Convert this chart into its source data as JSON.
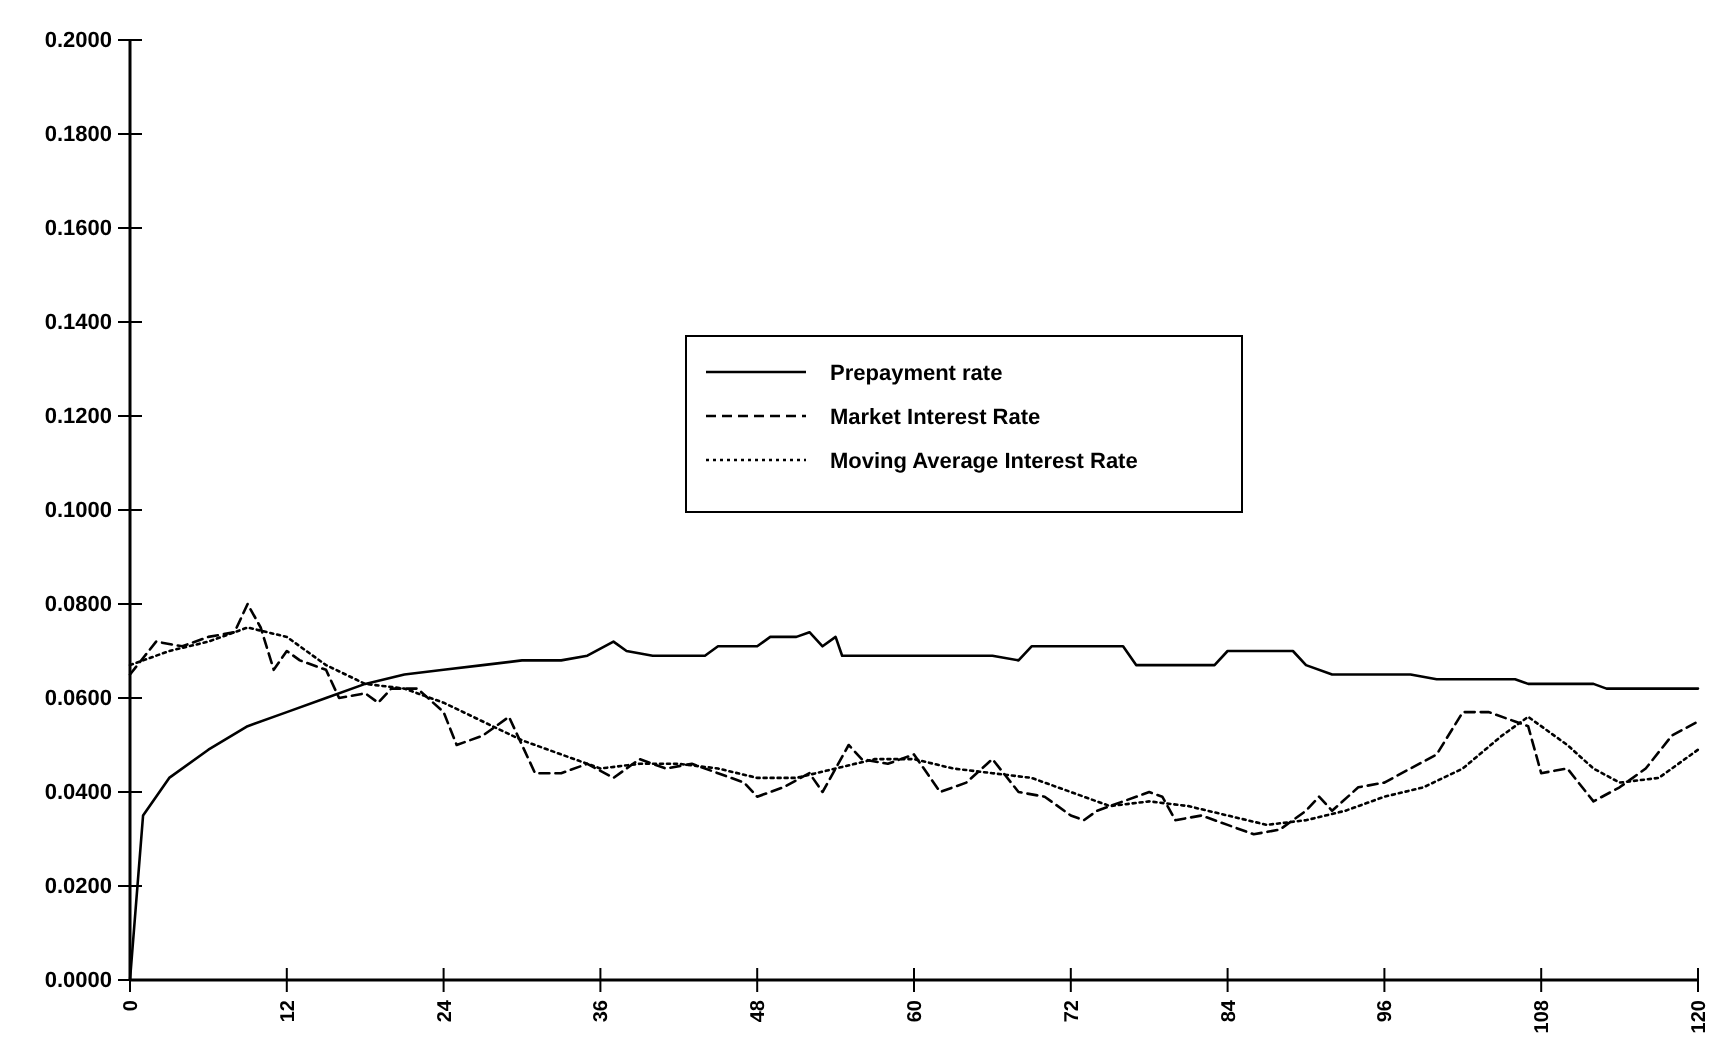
{
  "chart_data": {
    "type": "line",
    "xlim": [
      0,
      120
    ],
    "xticks": [
      0,
      12,
      24,
      36,
      48,
      60,
      72,
      84,
      96,
      108,
      120
    ],
    "ylim": [
      0,
      0.2
    ],
    "yticks": [
      {
        "value": 0,
        "label": "0.0000"
      },
      {
        "value": 0.02,
        "label": "0.0200"
      },
      {
        "value": 0.04,
        "label": "0.0400"
      },
      {
        "value": 0.06,
        "label": "0.0600"
      },
      {
        "value": 0.08,
        "label": "0.0800"
      },
      {
        "value": 0.1,
        "label": "0.1000"
      },
      {
        "value": 0.12,
        "label": "0.1200"
      },
      {
        "value": 0.14,
        "label": "0.1400"
      },
      {
        "value": 0.16,
        "label": "0.1600"
      },
      {
        "value": 0.18,
        "label": "0.1800"
      },
      {
        "value": 0.2,
        "label": "0.2000"
      }
    ],
    "grid": false,
    "legend": "top right",
    "marker": "none",
    "series": [
      {
        "name": "Prepayment rate",
        "color": "#000000",
        "line_style": "solid",
        "x": [
          0,
          1,
          3,
          6,
          9,
          12,
          15,
          18,
          21,
          24,
          27,
          30,
          33,
          35,
          37,
          38,
          40,
          44,
          45,
          48,
          49,
          51,
          52,
          53,
          54,
          54.5,
          66,
          68,
          69,
          76,
          77,
          83,
          84,
          89,
          90,
          92,
          98,
          100,
          106,
          107,
          112,
          113,
          120
        ],
        "values": [
          0,
          0.035,
          0.043,
          0.049,
          0.054,
          0.057,
          0.06,
          0.063,
          0.065,
          0.066,
          0.067,
          0.068,
          0.068,
          0.069,
          0.072,
          0.07,
          0.069,
          0.069,
          0.071,
          0.071,
          0.073,
          0.073,
          0.074,
          0.071,
          0.073,
          0.069,
          0.069,
          0.068,
          0.071,
          0.071,
          0.067,
          0.067,
          0.07,
          0.07,
          0.067,
          0.065,
          0.065,
          0.064,
          0.064,
          0.063,
          0.063,
          0.062,
          0.062
        ]
      },
      {
        "name": "Market Interest Rate",
        "color": "#000000",
        "line_style": "dashed",
        "x": [
          0,
          2,
          4,
          6,
          8,
          9,
          10,
          11,
          12,
          13,
          15,
          16,
          18,
          19,
          20,
          22,
          24,
          25,
          27,
          29,
          31,
          33,
          35,
          37,
          39,
          41,
          43,
          45,
          47,
          48,
          50,
          52,
          53,
          55,
          56,
          58,
          60,
          62,
          64,
          66,
          68,
          70,
          72,
          73,
          74,
          76,
          78,
          79,
          80,
          82,
          84,
          86,
          88,
          90,
          91,
          92,
          94,
          96,
          98,
          100,
          102,
          104,
          106,
          107,
          108,
          110,
          112,
          114,
          116,
          118,
          120
        ],
        "values": [
          0.065,
          0.072,
          0.071,
          0.073,
          0.074,
          0.08,
          0.075,
          0.066,
          0.07,
          0.068,
          0.066,
          0.06,
          0.061,
          0.059,
          0.062,
          0.062,
          0.057,
          0.05,
          0.052,
          0.056,
          0.044,
          0.044,
          0.046,
          0.043,
          0.047,
          0.045,
          0.046,
          0.044,
          0.042,
          0.039,
          0.041,
          0.044,
          0.04,
          0.05,
          0.047,
          0.046,
          0.048,
          0.04,
          0.042,
          0.047,
          0.04,
          0.039,
          0.035,
          0.034,
          0.036,
          0.038,
          0.04,
          0.039,
          0.034,
          0.035,
          0.033,
          0.031,
          0.032,
          0.036,
          0.039,
          0.036,
          0.041,
          0.042,
          0.045,
          0.048,
          0.057,
          0.057,
          0.055,
          0.054,
          0.044,
          0.045,
          0.038,
          0.041,
          0.045,
          0.052,
          0.055
        ]
      },
      {
        "name": "Moving Average Interest Rate",
        "color": "#000000",
        "line_style": "dotted",
        "x": [
          0,
          3,
          6,
          9,
          12,
          15,
          18,
          21,
          24,
          27,
          30,
          33,
          36,
          39,
          42,
          45,
          48,
          51,
          54,
          57,
          60,
          63,
          66,
          69,
          72,
          75,
          78,
          81,
          84,
          87,
          90,
          93,
          96,
          99,
          102,
          105,
          107,
          110,
          112,
          114,
          117,
          120
        ],
        "values": [
          0.067,
          0.07,
          0.072,
          0.075,
          0.073,
          0.067,
          0.063,
          0.062,
          0.059,
          0.055,
          0.051,
          0.048,
          0.045,
          0.046,
          0.046,
          0.045,
          0.043,
          0.043,
          0.045,
          0.047,
          0.047,
          0.045,
          0.044,
          0.043,
          0.04,
          0.037,
          0.038,
          0.037,
          0.035,
          0.033,
          0.034,
          0.036,
          0.039,
          0.041,
          0.045,
          0.052,
          0.056,
          0.05,
          0.045,
          0.042,
          0.043,
          0.049
        ]
      }
    ]
  }
}
